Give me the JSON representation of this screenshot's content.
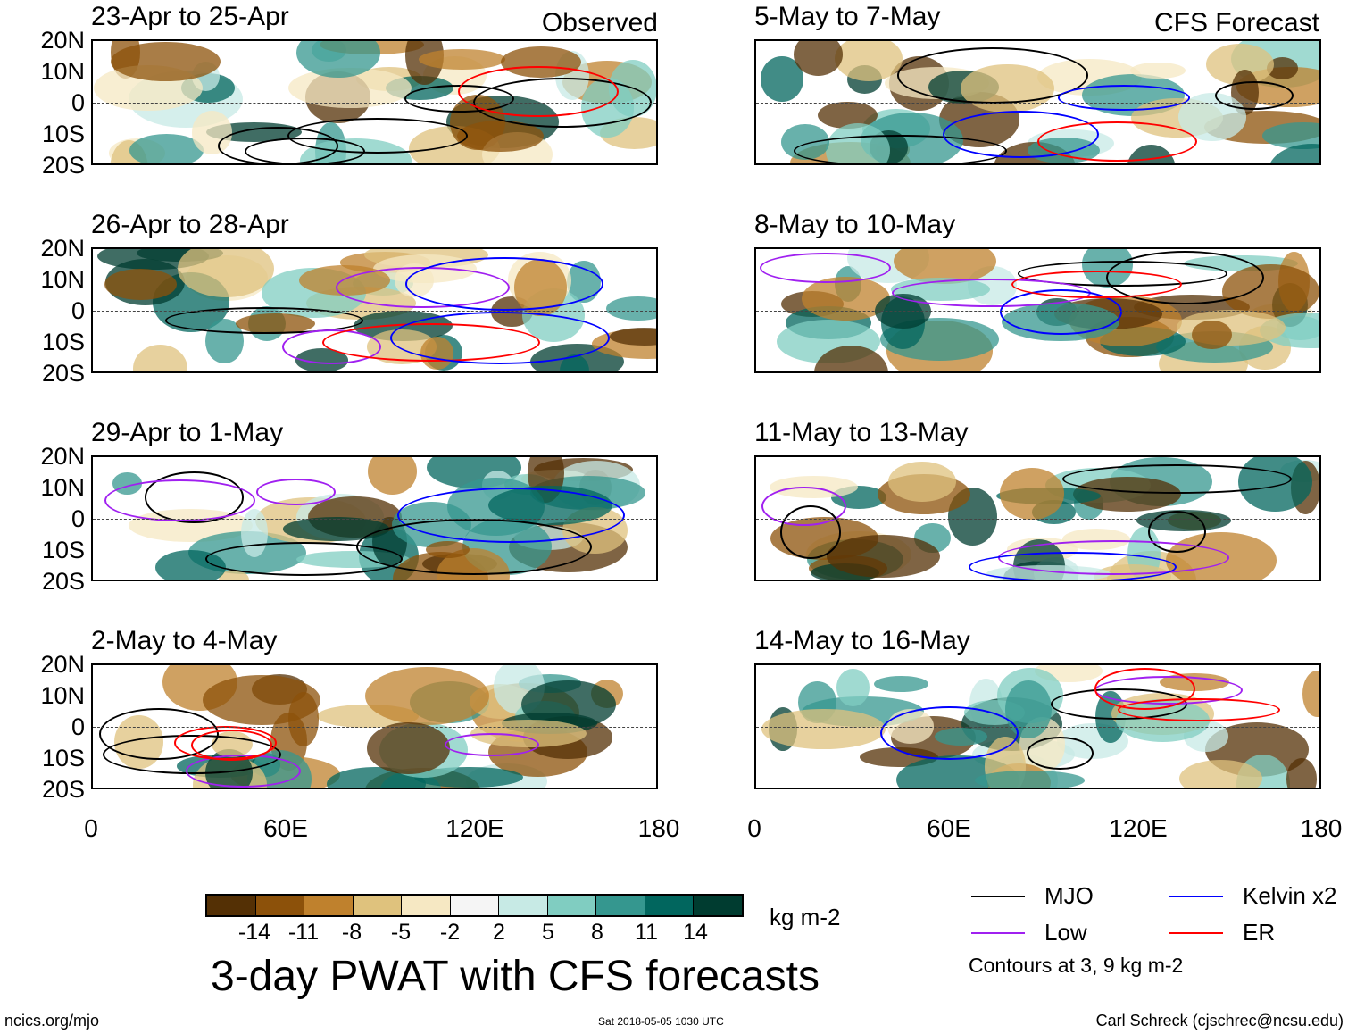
{
  "chart_data": {
    "type": "heatmap",
    "title": "3-day PWAT with CFS forecasts",
    "units": "kg m-2",
    "panel_headers": {
      "observed": "Observed",
      "forecast": "CFS Forecast"
    },
    "lat_ticks": [
      "20N",
      "10N",
      "0",
      "10S",
      "20S"
    ],
    "lon_ticks": [
      "0",
      "60E",
      "120E",
      "180"
    ],
    "lat_range": [
      -20,
      20
    ],
    "lon_range": [
      0,
      180
    ],
    "colorbar": {
      "ticks": [
        "-14",
        "-11",
        "-8",
        "-5",
        "-2",
        "2",
        "5",
        "8",
        "11",
        "14"
      ],
      "colors": [
        "#543005",
        "#8c510a",
        "#bf812d",
        "#dfc27d",
        "#f6e8c3",
        "#f5f5f5",
        "#c7eae5",
        "#80cdc1",
        "#35978f",
        "#01665e",
        "#003c30"
      ]
    },
    "legend": [
      {
        "name": "MJO",
        "color": "#000000"
      },
      {
        "name": "Kelvin x2",
        "color": "#0000ff"
      },
      {
        "name": "Low",
        "color": "#a020f0"
      },
      {
        "name": "ER",
        "color": "#ff0000"
      }
    ],
    "contour_note": "Contours at 3, 9 kg m-2",
    "panels": [
      {
        "period": "23-Apr to 25-Apr",
        "kind": "observed"
      },
      {
        "period": "26-Apr to 28-Apr",
        "kind": "observed"
      },
      {
        "period": "29-Apr to 1-May",
        "kind": "observed"
      },
      {
        "period": "2-May to 4-May",
        "kind": "observed"
      },
      {
        "period": "5-May to 7-May",
        "kind": "forecast"
      },
      {
        "period": "8-May to 10-May",
        "kind": "forecast"
      },
      {
        "period": "11-May to 13-May",
        "kind": "forecast"
      },
      {
        "period": "14-May to 16-May",
        "kind": "forecast"
      }
    ]
  },
  "footer": {
    "left": "ncics.org/mjo",
    "center": "Sat 2018-05-05 1030 UTC",
    "right": "Carl Schreck (cjschrec@ncsu.edu)"
  }
}
